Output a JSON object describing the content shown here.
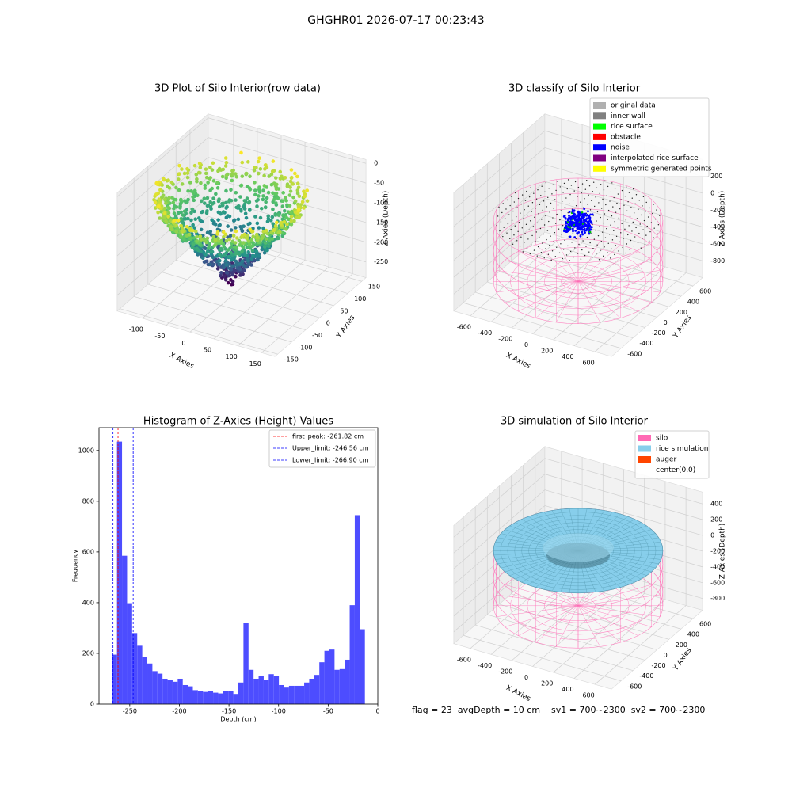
{
  "title": "GHGHR01 2026-07-17 00:23:43",
  "footer": "flag = 23  avgDepth = 10 cm    sv1 = 700~2300  sv2 = 700~2300",
  "chart_data": [
    {
      "type": "scatter3d",
      "title": "3D Plot of Silo Interior(row data)",
      "xlabel": "X Axies",
      "ylabel": "Y Axies",
      "zlabel": "Z Axies (Depth)",
      "xlim": [
        -153,
        178
      ],
      "ylim": [
        -160,
        165
      ],
      "zlim": [
        -290,
        10
      ],
      "xticks": [
        -100,
        -50,
        0,
        50,
        100,
        150
      ],
      "yticks": [
        -150,
        -100,
        -50,
        0,
        50,
        100,
        150
      ],
      "zticks": [
        0,
        -50,
        -100,
        -150,
        -200,
        -250
      ]
    },
    {
      "type": "scatter3d",
      "title": "3D classify of Silo Interior",
      "xlabel": "X Axies",
      "ylabel": "Y Axies",
      "zlabel": "Z Axies (Depth)",
      "xlim": [
        -760,
        760
      ],
      "ylim": [
        -760,
        760
      ],
      "zlim": [
        -1000,
        400
      ],
      "xticks": [
        -600,
        -400,
        -200,
        0,
        200,
        400,
        600
      ],
      "yticks": [
        -600,
        -400,
        -200,
        0,
        200,
        400,
        600
      ],
      "zticks": [
        200,
        0,
        -200,
        -400,
        -600,
        -800
      ],
      "legend": "upper right",
      "series": [
        {
          "name": "original data",
          "color": "#b0b0b0"
        },
        {
          "name": "inner wall",
          "color": "#808080"
        },
        {
          "name": "rice surface",
          "color": "#00ff00"
        },
        {
          "name": "obstacle",
          "color": "#ff0000"
        },
        {
          "name": "noise",
          "color": "#0000ff"
        },
        {
          "name": "interpolated rice surface",
          "color": "#800080"
        },
        {
          "name": "symmetric generated points",
          "color": "#ffff00"
        }
      ]
    },
    {
      "type": "histogram",
      "title": "Histogram of Z-Axies (Height) Values",
      "xlabel": "Depth (cm)",
      "ylabel": "Frequency",
      "color": "#4d4dff",
      "xlim": [
        -281,
        0
      ],
      "ylim": [
        0,
        1090
      ],
      "xticks": [
        -250,
        -200,
        -150,
        -100,
        -50,
        0
      ],
      "yticks": [
        0,
        200,
        400,
        600,
        800,
        1000
      ],
      "bins": [
        -268,
        -262.9,
        -257.8,
        -252.7,
        -247.6,
        -242.5,
        -237.4,
        -232.3,
        -227.2,
        -222.1,
        -217,
        -211.9,
        -206.8,
        -201.7,
        -196.6,
        -191.5,
        -186.4,
        -181.3,
        -176.2,
        -171.1,
        -166,
        -160.9,
        -155.8,
        -150.7,
        -145.6,
        -140.5,
        -135.4,
        -130.3,
        -125.2,
        -120.1,
        -115,
        -109.9,
        -104.8,
        -99.7,
        -94.6,
        -89.5,
        -84.4,
        -79.3,
        -74.2,
        -69.1,
        -64,
        -58.9,
        -53.8,
        -48.7,
        -43.6,
        -38.5,
        -33.4,
        -28.3,
        -23.2,
        -18.1,
        -13
      ],
      "values": [
        195,
        1035,
        585,
        398,
        280,
        230,
        185,
        160,
        130,
        120,
        100,
        95,
        88,
        100,
        75,
        70,
        55,
        50,
        48,
        50,
        45,
        42,
        50,
        50,
        40,
        85,
        320,
        135,
        100,
        110,
        95,
        118,
        112,
        75,
        65,
        72,
        72,
        72,
        85,
        100,
        115,
        165,
        210,
        215,
        135,
        138,
        175,
        390,
        745,
        295
      ],
      "legend": "upper right",
      "lines": [
        {
          "name": "first_peak: -261.82 cm",
          "value": -261.82,
          "color": "#ff0000"
        },
        {
          "name": "Upper_limit: -246.56 cm",
          "value": -246.56,
          "color": "#0000ff"
        },
        {
          "name": "Lower_limit: -266.90 cm",
          "value": -266.9,
          "color": "#0000ff"
        }
      ]
    },
    {
      "type": "surface3d",
      "title": "3D simulation of Silo Interior",
      "xlabel": "X Axies",
      "ylabel": "Y Axies",
      "zlabel": "Z Axies (Depth)",
      "xlim": [
        -760,
        760
      ],
      "ylim": [
        -760,
        760
      ],
      "zlim": [
        -950,
        550
      ],
      "xticks": [
        -600,
        -400,
        -200,
        0,
        200,
        400,
        600
      ],
      "yticks": [
        -600,
        -400,
        -200,
        0,
        200,
        400,
        600
      ],
      "zticks": [
        400,
        200,
        0,
        -200,
        -400,
        -600,
        -800
      ],
      "legend": "upper right",
      "series": [
        {
          "name": "silo",
          "color": "#ff69b4"
        },
        {
          "name": "rice simulation",
          "color": "#87ceeb"
        },
        {
          "name": "auger",
          "color": "#ff4500"
        },
        {
          "name": "center(0,0)",
          "color": "#ffffff"
        }
      ]
    }
  ]
}
